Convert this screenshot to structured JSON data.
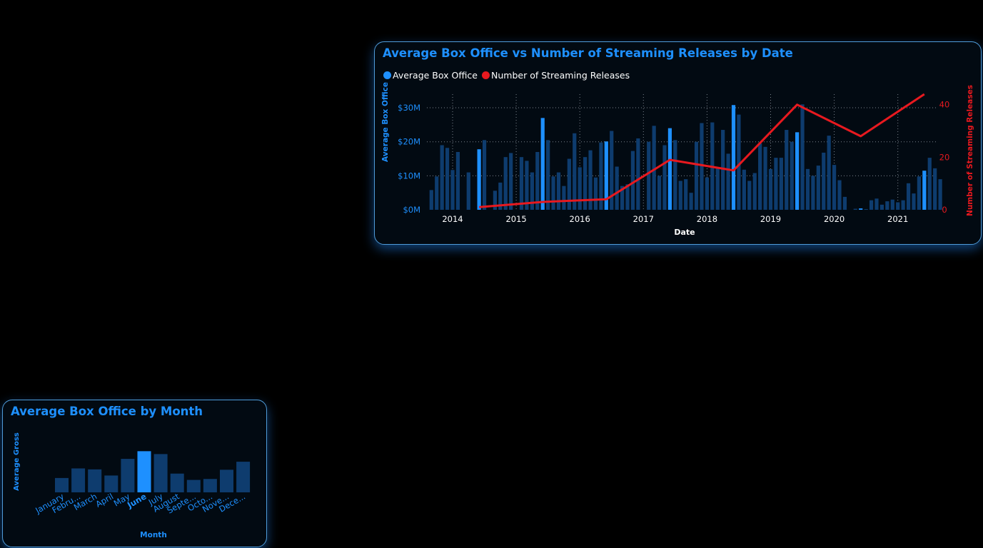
{
  "colors": {
    "bar": "#0e3c6e",
    "bar_highlight": "#1e90ff",
    "line": "#e8191f",
    "title": "#1e90ff",
    "card_border": "#4f9bd8"
  },
  "combo_chart": {
    "title": "Average Box Office vs Number of Streaming Releases by Date",
    "legend": [
      {
        "label": "Average Box Office",
        "color": "#1e90ff"
      },
      {
        "label": "Number of Streaming Releases",
        "color": "#e8191f"
      }
    ],
    "y_left_label": "Average Box Office",
    "y_right_label": "Number of Streaming Releases",
    "x_label": "Date"
  },
  "month_chart": {
    "title": "Average Box Office by Month",
    "y_label": "Average Gross",
    "x_label": "Month"
  },
  "chart_data": [
    {
      "type": "bar",
      "x_unit": "month",
      "x_start": "2013-09",
      "x_ticks": [
        "2014",
        "2015",
        "2016",
        "2017",
        "2018",
        "2019",
        "2020",
        "2021"
      ],
      "y_left_ticks": [
        "$0M",
        "$10M",
        "$20M",
        "$30M"
      ],
      "y_left_range": [
        0,
        34
      ],
      "y_right_ticks": [
        "0",
        "20",
        "40"
      ],
      "y_right_range": [
        0,
        44
      ],
      "grid": true,
      "legend_position": "top-left",
      "series": [
        {
          "name": "Average Box Office",
          "type": "bar",
          "unit": "$M",
          "highlight_every": 12,
          "highlight_offset": 9,
          "values": [
            5.8,
            9.8,
            19.0,
            18.2,
            11.7,
            17.0,
            0,
            11.0,
            0,
            17.8,
            20.5,
            0,
            5.6,
            8.0,
            15.5,
            16.7,
            0,
            15.5,
            14.4,
            11.0,
            17.0,
            27.0,
            20.5,
            9.8,
            11.0,
            7.0,
            15.0,
            22.5,
            12.5,
            15.5,
            17.5,
            9.5,
            19.8,
            20.1,
            23.2,
            12.7,
            7.0,
            7.5,
            17.3,
            21.0,
            0,
            20.0,
            24.7,
            10.0,
            19.0,
            24.0,
            20.5,
            8.5,
            9.0,
            5.0,
            20.0,
            25.5,
            9.5,
            25.7,
            12.5,
            23.5,
            16.5,
            30.8,
            28.0,
            11.8,
            8.5,
            10.8,
            19.5,
            18.5,
            12.0,
            15.3,
            15.3,
            23.5,
            20.0,
            22.8,
            31.0,
            12.0,
            10.0,
            13.0,
            16.8,
            21.8,
            13.2,
            8.7,
            3.8,
            0,
            0.3,
            0.4,
            0.2,
            2.8,
            3.3,
            1.5,
            2.5,
            3.0,
            2.2,
            2.8,
            7.8,
            4.8,
            9.8,
            11.5,
            15.3,
            12.2,
            9.0
          ]
        },
        {
          "name": "Number of Streaming Releases",
          "type": "line",
          "axis": "right",
          "points": [
            {
              "x": "2014-06",
              "y": 1
            },
            {
              "x": "2015-06",
              "y": 3
            },
            {
              "x": "2016-06",
              "y": 4
            },
            {
              "x": "2017-06",
              "y": 19
            },
            {
              "x": "2018-06",
              "y": 15
            },
            {
              "x": "2019-06",
              "y": 40
            },
            {
              "x": "2020-06",
              "y": 28
            },
            {
              "x": "2021-06",
              "y": 44
            }
          ]
        }
      ]
    },
    {
      "type": "bar",
      "categories": [
        "January",
        "Febru...",
        "March",
        "April",
        "May",
        "June",
        "July",
        "August",
        "Septe...",
        "Octo...",
        "Nove...",
        "Dece..."
      ],
      "values": [
        7.5,
        12.5,
        12.0,
        8.8,
        17.5,
        21.5,
        20.0,
        9.8,
        6.5,
        7.0,
        11.8,
        16.0
      ],
      "unit": "$M",
      "highlight": "June",
      "y_range": [
        0,
        22
      ],
      "grid": false
    }
  ]
}
